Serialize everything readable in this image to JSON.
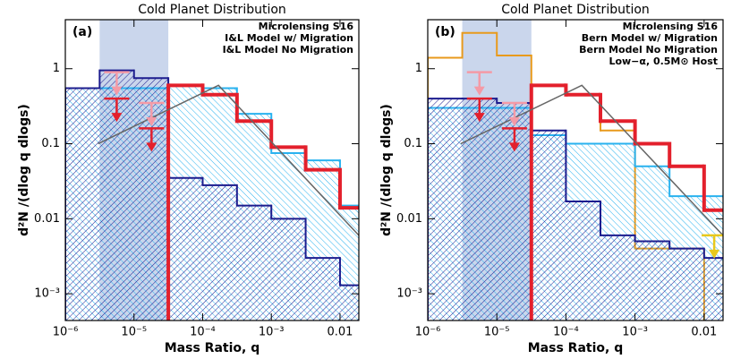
{
  "chart_data": [
    {
      "type": "step",
      "title": "Cold Planet Distribution",
      "panel_label": "(a)",
      "xlabel": "Mass Ratio, q",
      "ylabel": "d²N /(dlog q dlogs)",
      "log_x": true,
      "log_y": true,
      "xlim": [
        1e-06,
        0.0188
      ],
      "ylim": [
        0.00044,
        4.5
      ],
      "xticks": [
        {
          "value": 1e-06,
          "label": "10⁻⁶"
        },
        {
          "value": 1e-05,
          "label": "10⁻⁵"
        },
        {
          "value": 0.0001,
          "label": "10⁻⁴"
        },
        {
          "value": 0.001,
          "label": "10⁻³"
        },
        0.01
      ],
      "yticks": [
        {
          "value": 0.001,
          "label": "10⁻³"
        },
        0.01,
        0.1,
        1
      ],
      "shade": [
        3.16e-06,
        3.16e-05
      ],
      "shade_color": "#9fb4dc",
      "series": [
        {
          "name": "Microlensing S16",
          "color": "#e3202c",
          "bins": [
            3.16e-05,
            0.0001,
            0.000316,
            0.001,
            0.00316,
            0.01,
            0.0316
          ],
          "values": [
            0.6,
            0.45,
            0.2,
            0.09,
            0.045,
            0.014
          ]
        },
        {
          "name": "I&L Model w/ Migration",
          "color": "#1c1c8e",
          "hatch": "fwd",
          "bins": [
            1e-06,
            3.16e-06,
            1e-05,
            3.16e-05,
            0.0001,
            0.000316,
            0.001,
            0.00316,
            0.01,
            0.0316
          ],
          "values": [
            0.55,
            0.95,
            0.75,
            0.035,
            0.028,
            0.015,
            0.01,
            0.003,
            0.0013
          ]
        },
        {
          "name": "I&L Model No Migration",
          "color": "#29b2ef",
          "hatch": "back",
          "bins": [
            1e-06,
            3.16e-06,
            1e-05,
            3.16e-05,
            0.0001,
            0.000316,
            0.001,
            0.00316,
            0.01,
            0.0316
          ],
          "values": [
            0.55,
            0.55,
            0.55,
            0.6,
            0.55,
            0.25,
            0.075,
            0.06,
            0.015
          ]
        }
      ],
      "upper_limits": [
        {
          "color": "#f49aa6",
          "x": [
            5.6e-06,
            1.8e-05
          ],
          "values": [
            0.9,
            0.35
          ]
        },
        {
          "color": "#e3202c",
          "x": [
            5.6e-06,
            1.8e-05
          ],
          "values": [
            0.4,
            0.16
          ]
        }
      ],
      "model_line": {
        "color": "#666666",
        "x": [
          3e-06,
          0.00017,
          0.0188
        ],
        "values": [
          0.1,
          0.6,
          0.006
        ]
      }
    },
    {
      "type": "step",
      "title": "Cold Planet Distribution",
      "panel_label": "(b)",
      "xlabel": "Mass Ratio, q",
      "ylabel": "d²N /(dlog q dlogs)",
      "log_x": true,
      "log_y": true,
      "xlim": [
        1e-06,
        0.0188
      ],
      "ylim": [
        0.00044,
        4.5
      ],
      "xticks": [
        {
          "value": 1e-06,
          "label": "10⁻⁶"
        },
        {
          "value": 1e-05,
          "label": "10⁻⁵"
        },
        {
          "value": 0.0001,
          "label": "10⁻⁴"
        },
        {
          "value": 0.001,
          "label": "10⁻³"
        },
        0.01
      ],
      "yticks": [
        {
          "value": 0.001,
          "label": "10⁻³"
        },
        0.01,
        0.1,
        1
      ],
      "shade": [
        3.16e-06,
        3.16e-05
      ],
      "shade_color": "#9fb4dc",
      "series": [
        {
          "name": "Microlensing S16",
          "color": "#e3202c",
          "bins": [
            3.16e-05,
            0.0001,
            0.000316,
            0.001,
            0.00316,
            0.01,
            0.0316
          ],
          "values": [
            0.6,
            0.45,
            0.2,
            0.1,
            0.05,
            0.013
          ]
        },
        {
          "name": "Bern Model w/ Migration",
          "color": "#1c1c8e",
          "hatch": "fwd",
          "bins": [
            1e-06,
            3.16e-06,
            1e-05,
            3.16e-05,
            0.0001,
            0.000316,
            0.001,
            0.00316,
            0.01,
            0.0316
          ],
          "values": [
            0.4,
            0.4,
            0.35,
            0.15,
            0.017,
            0.006,
            0.005,
            0.004,
            0.003
          ]
        },
        {
          "name": "Bern Model No Migration",
          "color": "#29b2ef",
          "hatch": "back",
          "bins": [
            1e-06,
            3.16e-06,
            1e-05,
            3.16e-05,
            0.0001,
            0.000316,
            0.001,
            0.00316,
            0.01,
            0.0316
          ],
          "values": [
            0.3,
            0.3,
            0.3,
            0.13,
            0.1,
            0.1,
            0.05,
            0.02,
            0.02
          ]
        },
        {
          "name": "Low−α, 0.5M⊙ Host",
          "color": "#e89a1c",
          "bins": [
            1e-06,
            3.16e-06,
            1e-05,
            3.16e-05,
            0.0001,
            0.000316,
            0.001,
            0.00316,
            0.01
          ],
          "values": [
            1.4,
            3.0,
            1.5,
            0.6,
            0.45,
            0.15,
            0.004,
            0.004
          ]
        }
      ],
      "upper_limits": [
        {
          "color": "#f49aa6",
          "x": [
            5.6e-06,
            1.8e-05
          ],
          "values": [
            0.9,
            0.35
          ]
        },
        {
          "color": "#e3202c",
          "x": [
            5.6e-06,
            1.8e-05
          ],
          "values": [
            0.4,
            0.16
          ]
        },
        {
          "color": "#e8c81c",
          "x": [
            0.014
          ],
          "values": [
            0.006
          ]
        }
      ],
      "model_line": {
        "color": "#666666",
        "x": [
          3e-06,
          0.00017,
          0.0188
        ],
        "values": [
          0.1,
          0.6,
          0.006
        ]
      }
    }
  ]
}
